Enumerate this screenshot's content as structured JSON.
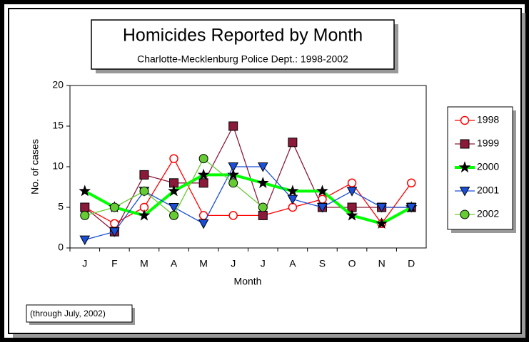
{
  "chart_data": {
    "type": "line",
    "title": "Homicides Reported by Month",
    "subtitle": "Charlotte-Mecklenburg Police Dept.: 1998-2002",
    "x_label": "Month",
    "y_label": "No. of cases",
    "note": "(through  July, 2002)",
    "categories": [
      "J",
      "F",
      "M",
      "A",
      "M",
      "J",
      "J",
      "A",
      "S",
      "O",
      "N",
      "D"
    ],
    "ylim": [
      0,
      20
    ],
    "yticks": [
      0,
      5,
      10,
      15,
      20
    ],
    "legend": "right",
    "series": [
      {
        "name": "1998",
        "color": "#ff0000",
        "marker": "circle-open",
        "values": [
          5,
          3,
          5,
          11,
          4,
          4,
          4,
          5,
          6,
          8,
          3,
          8
        ]
      },
      {
        "name": "1999",
        "color": "#8b1a3a",
        "marker": "square",
        "values": [
          5,
          2,
          9,
          8,
          8,
          15,
          4,
          13,
          5,
          5,
          5,
          5
        ]
      },
      {
        "name": "2000",
        "color": "#00ff00",
        "marker": "star",
        "values": [
          7,
          5,
          4,
          7,
          9,
          9,
          8,
          7,
          7,
          4,
          3,
          5
        ]
      },
      {
        "name": "2001",
        "color": "#1a4fd6",
        "marker": "triangle-down",
        "values": [
          1,
          2,
          7,
          5,
          3,
          10,
          10,
          6,
          5,
          7,
          5,
          5
        ]
      },
      {
        "name": "2002",
        "color": "#66cc33",
        "marker": "circle",
        "values": [
          4,
          5,
          7,
          4,
          11,
          8,
          5,
          null,
          null,
          null,
          null,
          null
        ]
      }
    ]
  }
}
